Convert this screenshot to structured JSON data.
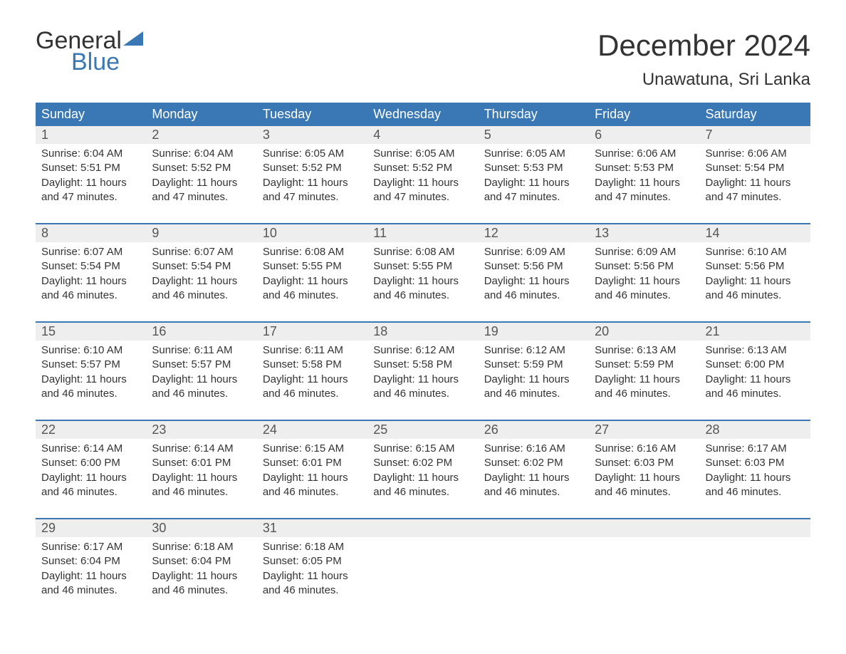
{
  "logo": {
    "line1": "General",
    "line2": "Blue",
    "accent_color": "#3a78b5"
  },
  "title": "December 2024",
  "location": "Unawatuna, Sri Lanka",
  "colors": {
    "header_bg": "#3a78b5",
    "header_text": "#ffffff",
    "daynum_bg": "#eeeeee",
    "text": "#333333",
    "week_border": "#3a78b5"
  },
  "typography": {
    "title_fontsize": 42,
    "location_fontsize": 24,
    "weekday_fontsize": 18,
    "daynum_fontsize": 18,
    "body_fontsize": 15
  },
  "weekdays": [
    "Sunday",
    "Monday",
    "Tuesday",
    "Wednesday",
    "Thursday",
    "Friday",
    "Saturday"
  ],
  "labels": {
    "sunrise": "Sunrise",
    "sunset": "Sunset",
    "daylight": "Daylight"
  },
  "weeks": [
    [
      {
        "n": 1,
        "sunrise": "6:04 AM",
        "sunset": "5:51 PM",
        "day_h": 11,
        "day_m": 47
      },
      {
        "n": 2,
        "sunrise": "6:04 AM",
        "sunset": "5:52 PM",
        "day_h": 11,
        "day_m": 47
      },
      {
        "n": 3,
        "sunrise": "6:05 AM",
        "sunset": "5:52 PM",
        "day_h": 11,
        "day_m": 47
      },
      {
        "n": 4,
        "sunrise": "6:05 AM",
        "sunset": "5:52 PM",
        "day_h": 11,
        "day_m": 47
      },
      {
        "n": 5,
        "sunrise": "6:05 AM",
        "sunset": "5:53 PM",
        "day_h": 11,
        "day_m": 47
      },
      {
        "n": 6,
        "sunrise": "6:06 AM",
        "sunset": "5:53 PM",
        "day_h": 11,
        "day_m": 47
      },
      {
        "n": 7,
        "sunrise": "6:06 AM",
        "sunset": "5:54 PM",
        "day_h": 11,
        "day_m": 47
      }
    ],
    [
      {
        "n": 8,
        "sunrise": "6:07 AM",
        "sunset": "5:54 PM",
        "day_h": 11,
        "day_m": 46
      },
      {
        "n": 9,
        "sunrise": "6:07 AM",
        "sunset": "5:54 PM",
        "day_h": 11,
        "day_m": 46
      },
      {
        "n": 10,
        "sunrise": "6:08 AM",
        "sunset": "5:55 PM",
        "day_h": 11,
        "day_m": 46
      },
      {
        "n": 11,
        "sunrise": "6:08 AM",
        "sunset": "5:55 PM",
        "day_h": 11,
        "day_m": 46
      },
      {
        "n": 12,
        "sunrise": "6:09 AM",
        "sunset": "5:56 PM",
        "day_h": 11,
        "day_m": 46
      },
      {
        "n": 13,
        "sunrise": "6:09 AM",
        "sunset": "5:56 PM",
        "day_h": 11,
        "day_m": 46
      },
      {
        "n": 14,
        "sunrise": "6:10 AM",
        "sunset": "5:56 PM",
        "day_h": 11,
        "day_m": 46
      }
    ],
    [
      {
        "n": 15,
        "sunrise": "6:10 AM",
        "sunset": "5:57 PM",
        "day_h": 11,
        "day_m": 46
      },
      {
        "n": 16,
        "sunrise": "6:11 AM",
        "sunset": "5:57 PM",
        "day_h": 11,
        "day_m": 46
      },
      {
        "n": 17,
        "sunrise": "6:11 AM",
        "sunset": "5:58 PM",
        "day_h": 11,
        "day_m": 46
      },
      {
        "n": 18,
        "sunrise": "6:12 AM",
        "sunset": "5:58 PM",
        "day_h": 11,
        "day_m": 46
      },
      {
        "n": 19,
        "sunrise": "6:12 AM",
        "sunset": "5:59 PM",
        "day_h": 11,
        "day_m": 46
      },
      {
        "n": 20,
        "sunrise": "6:13 AM",
        "sunset": "5:59 PM",
        "day_h": 11,
        "day_m": 46
      },
      {
        "n": 21,
        "sunrise": "6:13 AM",
        "sunset": "6:00 PM",
        "day_h": 11,
        "day_m": 46
      }
    ],
    [
      {
        "n": 22,
        "sunrise": "6:14 AM",
        "sunset": "6:00 PM",
        "day_h": 11,
        "day_m": 46
      },
      {
        "n": 23,
        "sunrise": "6:14 AM",
        "sunset": "6:01 PM",
        "day_h": 11,
        "day_m": 46
      },
      {
        "n": 24,
        "sunrise": "6:15 AM",
        "sunset": "6:01 PM",
        "day_h": 11,
        "day_m": 46
      },
      {
        "n": 25,
        "sunrise": "6:15 AM",
        "sunset": "6:02 PM",
        "day_h": 11,
        "day_m": 46
      },
      {
        "n": 26,
        "sunrise": "6:16 AM",
        "sunset": "6:02 PM",
        "day_h": 11,
        "day_m": 46
      },
      {
        "n": 27,
        "sunrise": "6:16 AM",
        "sunset": "6:03 PM",
        "day_h": 11,
        "day_m": 46
      },
      {
        "n": 28,
        "sunrise": "6:17 AM",
        "sunset": "6:03 PM",
        "day_h": 11,
        "day_m": 46
      }
    ],
    [
      {
        "n": 29,
        "sunrise": "6:17 AM",
        "sunset": "6:04 PM",
        "day_h": 11,
        "day_m": 46
      },
      {
        "n": 30,
        "sunrise": "6:18 AM",
        "sunset": "6:04 PM",
        "day_h": 11,
        "day_m": 46
      },
      {
        "n": 31,
        "sunrise": "6:18 AM",
        "sunset": "6:05 PM",
        "day_h": 11,
        "day_m": 46
      },
      null,
      null,
      null,
      null
    ]
  ]
}
